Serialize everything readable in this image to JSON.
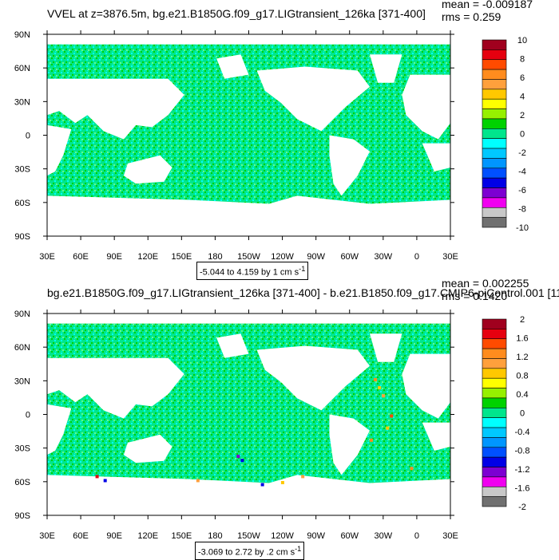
{
  "chart_data": [
    {
      "type": "heatmap",
      "title": "VVEL at z=3876.5m, bg.e21.B1850G.f09_g17.LIGtransient_126ka [371-400]",
      "mean_label": "mean = -0.009187",
      "rms_label": "rms = 0.259",
      "range_label": "-5.044 to 4.159 by 1 cm s",
      "range_units_exponent": "-1",
      "x_tick_labels": [
        "30E",
        "60E",
        "90E",
        "120E",
        "150E",
        "180",
        "150W",
        "120W",
        "90W",
        "60W",
        "30W",
        "0",
        "30E"
      ],
      "y_tick_labels": [
        "90N",
        "60N",
        "30N",
        "0",
        "30S",
        "60S",
        "90S"
      ],
      "colorbar_labels": [
        "10",
        "8",
        "6",
        "4",
        "2",
        "0",
        "-2",
        "-4",
        "-6",
        "-8",
        "-10"
      ],
      "colorbar_colors": [
        "#a0001e",
        "#e6000f",
        "#ff4b00",
        "#ff8c1e",
        "#ffa03c",
        "#ffc800",
        "#ffff00",
        "#96f000",
        "#00d200",
        "#00e68c",
        "#00ffff",
        "#00c8ff",
        "#0096ff",
        "#0050ff",
        "#0000e6",
        "#7d00d2",
        "#f000f0",
        "#c8c8c8",
        "#707070"
      ],
      "background_color": "#00e68c"
    },
    {
      "type": "heatmap",
      "title": "bg.e21.B1850G.f09_g17.LIGtransient_126ka [371-400] - b.e21.B1850.f09_g17.CMIP6-piControl.001 [11",
      "mean_label": "mean = 0.002255",
      "rms_label": "rms = 0.1420",
      "range_label": "-3.069 to 2.72 by .2 cm s",
      "range_units_exponent": "-1",
      "x_tick_labels": [
        "30E",
        "60E",
        "90E",
        "120E",
        "150E",
        "180",
        "150W",
        "120W",
        "90W",
        "60W",
        "30W",
        "0",
        "30E"
      ],
      "y_tick_labels": [
        "90N",
        "60N",
        "30N",
        "0",
        "30S",
        "60S",
        "90S"
      ],
      "colorbar_labels": [
        "2",
        "1.6",
        "1.2",
        "0.8",
        "0.4",
        "0",
        "-0.4",
        "-0.8",
        "-1.2",
        "-1.6",
        "-2"
      ],
      "colorbar_colors": [
        "#a0001e",
        "#e6000f",
        "#ff4b00",
        "#ff8c1e",
        "#ffa03c",
        "#ffc800",
        "#ffff00",
        "#96f000",
        "#00d200",
        "#00e68c",
        "#00ffff",
        "#00c8ff",
        "#0096ff",
        "#0050ff",
        "#0000e6",
        "#7d00d2",
        "#f000f0",
        "#c8c8c8",
        "#707070"
      ],
      "background_color": "#00e68c"
    }
  ]
}
